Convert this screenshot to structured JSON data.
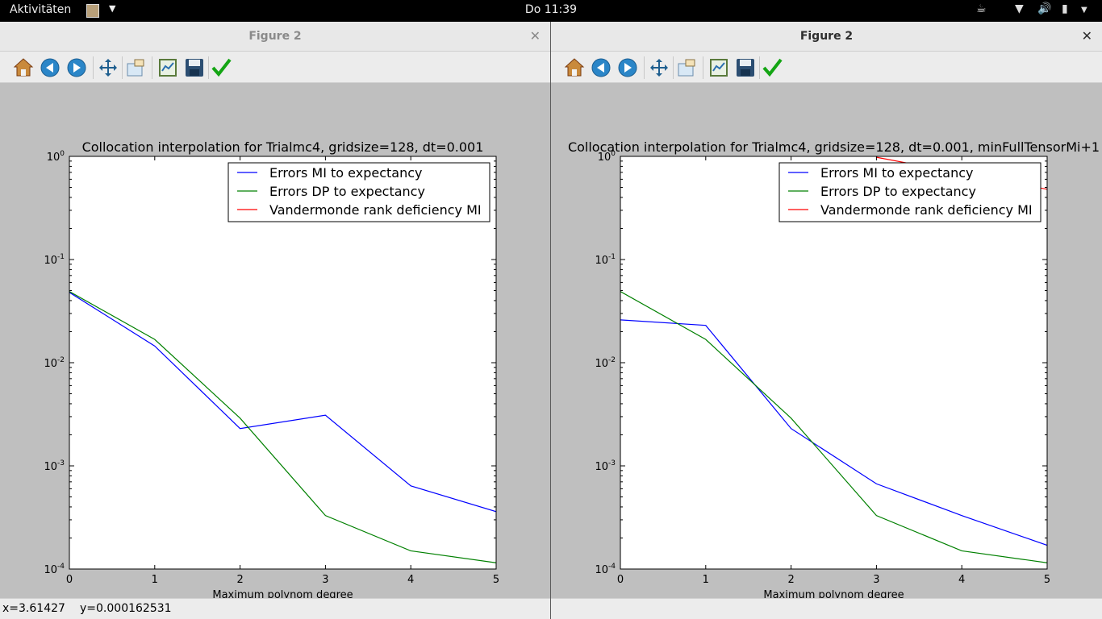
{
  "topbar": {
    "activities": "Aktivitäten",
    "clock": "Do 11:39"
  },
  "windows": [
    {
      "title": "Figure 2",
      "title_active": false,
      "status": {
        "x": "x=3.61427",
        "y": "y=0.000162531"
      },
      "chart_data": {
        "type": "line",
        "title": "Collocation interpolation for Trialmc4, gridsize=128, dt=0.001",
        "xlabel": "Maximum polynom degree",
        "ylabel": "",
        "xlim": [
          0,
          5
        ],
        "ylim": [
          0.0001,
          1
        ],
        "yscale": "log",
        "xticks": [
          "0",
          "1",
          "2",
          "3",
          "4",
          "5"
        ],
        "yticks": [
          {
            "base": "10",
            "exp": "-4",
            "value": 0.0001
          },
          {
            "base": "10",
            "exp": "-3",
            "value": 0.001
          },
          {
            "base": "10",
            "exp": "-2",
            "value": 0.01
          },
          {
            "base": "10",
            "exp": "-1",
            "value": 0.1
          },
          {
            "base": "10",
            "exp": "0",
            "value": 1
          }
        ],
        "legend_position": "top-right",
        "series": [
          {
            "name": "Errors MI to expectancy",
            "color": "#0000ff",
            "x": [
              0,
              1,
              2,
              3,
              4,
              5
            ],
            "y": [
              0.048,
              0.0145,
              0.0023,
              0.0031,
              0.00064,
              0.00036
            ]
          },
          {
            "name": "Errors DP to expectancy",
            "color": "#008000",
            "x": [
              0,
              1,
              2,
              3,
              4,
              5
            ],
            "y": [
              0.049,
              0.0168,
              0.0029,
              0.00033,
              0.00015,
              0.000115
            ]
          },
          {
            "name": "Vandermonde rank deficiency MI",
            "color": "#ff0000",
            "x": [],
            "y": []
          }
        ]
      }
    },
    {
      "title": "Figure 2",
      "title_active": true,
      "status": {
        "x": "",
        "y": ""
      },
      "chart_data": {
        "type": "line",
        "title": "Collocation interpolation for Trialmc4, gridsize=128, dt=0.001, minFullTensorMi+1",
        "xlabel": "Maximum polynom degree",
        "ylabel": "",
        "xlim": [
          0,
          5
        ],
        "ylim": [
          0.0001,
          1
        ],
        "yscale": "log",
        "xticks": [
          "0",
          "1",
          "2",
          "3",
          "4",
          "5"
        ],
        "yticks": [
          {
            "base": "10",
            "exp": "-4",
            "value": 0.0001
          },
          {
            "base": "10",
            "exp": "-3",
            "value": 0.001
          },
          {
            "base": "10",
            "exp": "-2",
            "value": 0.01
          },
          {
            "base": "10",
            "exp": "-1",
            "value": 0.1
          },
          {
            "base": "10",
            "exp": "0",
            "value": 1
          }
        ],
        "legend_position": "top-right",
        "series": [
          {
            "name": "Errors MI to expectancy",
            "color": "#0000ff",
            "x": [
              0,
              1,
              2,
              3,
              4,
              5
            ],
            "y": [
              0.026,
              0.023,
              0.0023,
              0.00067,
              0.00033,
              0.00017
            ]
          },
          {
            "name": "Errors DP to expectancy",
            "color": "#008000",
            "x": [
              0,
              1,
              2,
              3,
              4,
              5
            ],
            "y": [
              0.049,
              0.0168,
              0.0029,
              0.00033,
              0.00015,
              0.000115
            ]
          },
          {
            "name": "Vandermonde rank deficiency MI",
            "color": "#ff0000",
            "x": [
              3,
              5
            ],
            "y": [
              0.98,
              0.48
            ]
          }
        ]
      }
    }
  ],
  "toolbar_icons": [
    "home-icon",
    "back-icon",
    "forward-icon",
    "pan-icon",
    "zoom-icon",
    "configure-subplots-icon",
    "save-icon",
    "edit-axis-icon"
  ]
}
